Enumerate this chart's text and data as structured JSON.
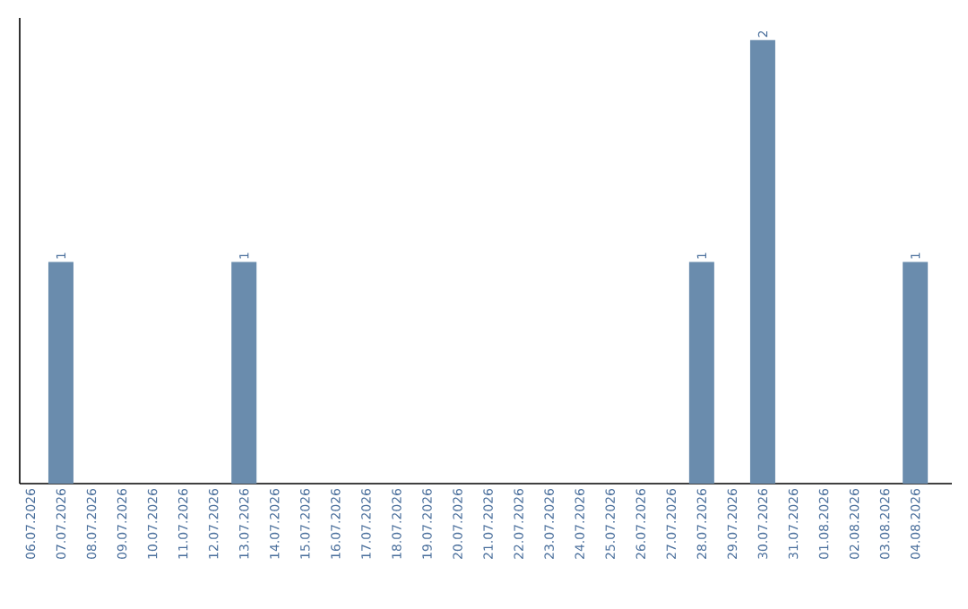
{
  "chart_data": {
    "type": "bar",
    "categories": [
      "06.07.2026",
      "07.07.2026",
      "08.07.2026",
      "09.07.2026",
      "10.07.2026",
      "11.07.2026",
      "12.07.2026",
      "13.07.2026",
      "14.07.2026",
      "15.07.2026",
      "16.07.2026",
      "17.07.2026",
      "18.07.2026",
      "19.07.2026",
      "20.07.2026",
      "21.07.2026",
      "22.07.2026",
      "23.07.2026",
      "24.07.2026",
      "25.07.2026",
      "26.07.2026",
      "27.07.2026",
      "28.07.2026",
      "29.07.2026",
      "30.07.2026",
      "31.07.2026",
      "01.08.2026",
      "02.08.2026",
      "03.08.2026",
      "04.08.2026"
    ],
    "values": [
      0,
      1,
      0,
      0,
      0,
      0,
      0,
      1,
      0,
      0,
      0,
      0,
      0,
      0,
      0,
      0,
      0,
      0,
      0,
      0,
      0,
      0,
      1,
      0,
      2,
      0,
      0,
      0,
      0,
      1
    ],
    "value_labels": [
      null,
      "1",
      null,
      null,
      null,
      null,
      null,
      "1",
      null,
      null,
      null,
      null,
      null,
      null,
      null,
      null,
      null,
      null,
      null,
      null,
      null,
      null,
      "1",
      null,
      "2",
      null,
      null,
      null,
      null,
      "1"
    ],
    "color": "#6a8cad",
    "tick_labels": "x"
  }
}
